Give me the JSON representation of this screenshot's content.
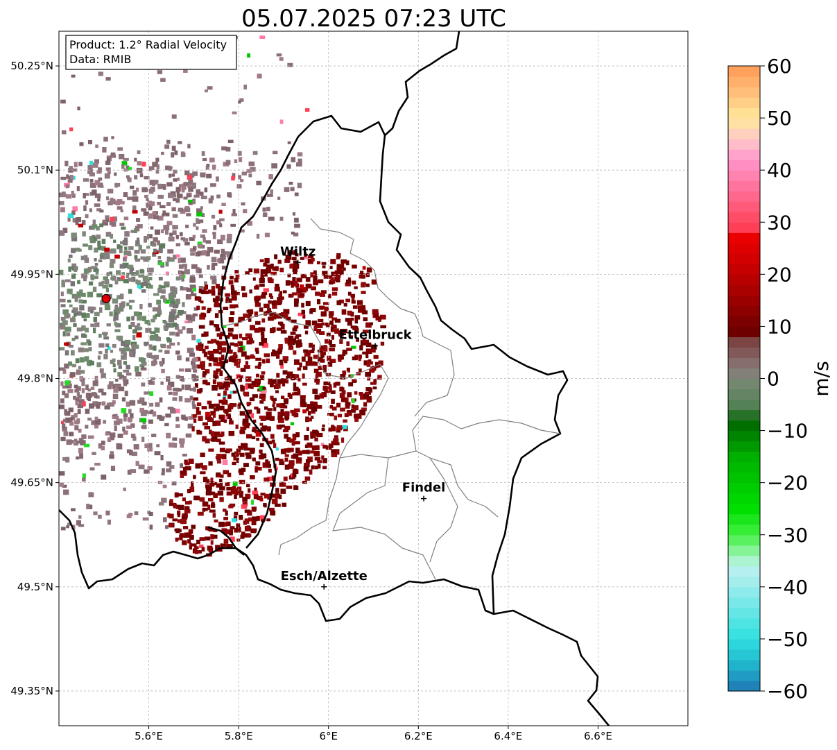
{
  "title": "05.07.2025 07:23 UTC",
  "info_box": {
    "product": "Product: 1.2° Radial Velocity",
    "data": "Data: RMIB"
  },
  "map": {
    "lon_range": [
      5.4,
      6.8
    ],
    "lat_range": [
      49.3,
      50.3
    ],
    "x_ticks": [
      {
        "value": 5.6,
        "label": "5.6°E"
      },
      {
        "value": 5.8,
        "label": "5.8°E"
      },
      {
        "value": 6.0,
        "label": "6°E"
      },
      {
        "value": 6.2,
        "label": "6.2°E"
      },
      {
        "value": 6.4,
        "label": "6.4°E"
      },
      {
        "value": 6.6,
        "label": "6.6°E"
      }
    ],
    "y_ticks": [
      {
        "value": 50.25,
        "label": "50.25°N"
      },
      {
        "value": 50.1,
        "label": "50.1°N"
      },
      {
        "value": 49.95,
        "label": "49.95°N"
      },
      {
        "value": 49.8,
        "label": "49.8°N"
      },
      {
        "value": 49.65,
        "label": "49.65°N"
      },
      {
        "value": 49.5,
        "label": "49.5°N"
      },
      {
        "value": 49.35,
        "label": "49.35°N"
      }
    ],
    "grid": true,
    "radar_site": {
      "lon": 5.505,
      "lat": 49.915,
      "color": "#e00000"
    },
    "cities": [
      {
        "name": "Wiltz",
        "lon": 5.932,
        "lat": 49.967
      },
      {
        "name": "Ettelbruck",
        "lon": 6.104,
        "lat": 49.847
      },
      {
        "name": "Findel",
        "lon": 6.212,
        "lat": 49.627
      },
      {
        "name": "Esch/Alzette",
        "lon": 5.99,
        "lat": 49.5
      }
    ]
  },
  "colorbar": {
    "label": "m/s",
    "vmin": -60,
    "vmax": 60,
    "ticks": [
      {
        "value": 60,
        "label": "60"
      },
      {
        "value": 50,
        "label": "50"
      },
      {
        "value": 40,
        "label": "40"
      },
      {
        "value": 30,
        "label": "30"
      },
      {
        "value": 20,
        "label": "20"
      },
      {
        "value": 10,
        "label": "10"
      },
      {
        "value": 0,
        "label": "0"
      },
      {
        "value": -10,
        "label": "−10"
      },
      {
        "value": -20,
        "label": "−20"
      },
      {
        "value": -30,
        "label": "−30"
      },
      {
        "value": -40,
        "label": "−40"
      },
      {
        "value": -50,
        "label": "−50"
      },
      {
        "value": -60,
        "label": "−60"
      }
    ],
    "stops": [
      {
        "v": -60,
        "color": "#1f77b4"
      },
      {
        "v": -55,
        "color": "#20b4cc"
      },
      {
        "v": -50,
        "color": "#2ee0e0"
      },
      {
        "v": -40,
        "color": "#99ecec"
      },
      {
        "v": -36,
        "color": "#bff0f0"
      },
      {
        "v": -34,
        "color": "#99f5b2"
      },
      {
        "v": -30,
        "color": "#44f044"
      },
      {
        "v": -25,
        "color": "#00e000"
      },
      {
        "v": -15,
        "color": "#00b000"
      },
      {
        "v": -8,
        "color": "#006400"
      },
      {
        "v": -6,
        "color": "#4e8050"
      },
      {
        "v": 0,
        "color": "#7a8878"
      },
      {
        "v": 2,
        "color": "#8a7878"
      },
      {
        "v": 8,
        "color": "#7a3a3a"
      },
      {
        "v": 9,
        "color": "#6e0000"
      },
      {
        "v": 20,
        "color": "#c00000"
      },
      {
        "v": 28,
        "color": "#f00000"
      },
      {
        "v": 29,
        "color": "#ff3f55"
      },
      {
        "v": 38,
        "color": "#ff7ba8"
      },
      {
        "v": 42,
        "color": "#ff96cc"
      },
      {
        "v": 46,
        "color": "#ffc8c8"
      },
      {
        "v": 50,
        "color": "#ffe99a"
      },
      {
        "v": 55,
        "color": "#ffbe7a"
      },
      {
        "v": 60,
        "color": "#ff9a55"
      }
    ]
  }
}
